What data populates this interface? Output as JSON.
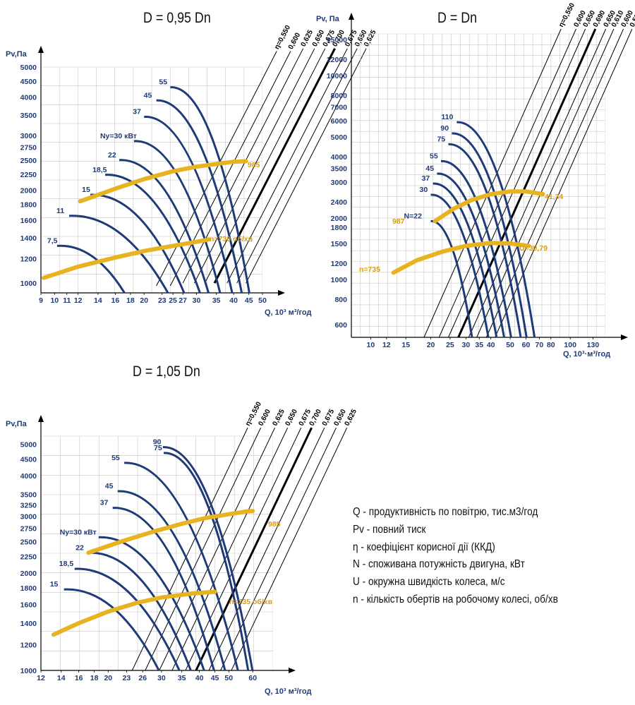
{
  "chart_data": [
    {
      "type": "line",
      "title": "D = 0,95 Dn",
      "ylabel": "Pv,Па",
      "xlabel": "Q, 10³ м³/год",
      "log_scale": "both",
      "grid": true,
      "xticks": [
        "9",
        "10",
        "11",
        "12",
        "14",
        "16",
        "18",
        "20",
        "23",
        "25",
        "27",
        "30",
        "35",
        "40",
        "45",
        "50"
      ],
      "yticks": [
        "1000",
        "1200",
        "1400",
        "1600",
        "1800",
        "2000",
        "2250",
        "2500",
        "2750",
        "3000",
        "3500",
        "4000",
        "4500",
        "5000"
      ],
      "efficiency_labels": [
        "η=0,550",
        "0,600",
        "0,625",
        "0,650",
        "0,675",
        "0,700",
        "0,675",
        "0,650",
        "0,625"
      ],
      "power_labels": [
        "7,5",
        "11",
        "15",
        "18,5",
        "22",
        "Ny=30 кВт",
        "37",
        "45",
        "55"
      ],
      "speed_curves": [
        {
          "name": "985",
          "points": [
            [
              12.2,
              1840
            ],
            [
              16,
              2020
            ],
            [
              20,
              2170
            ],
            [
              25,
              2300
            ],
            [
              30,
              2380
            ],
            [
              35,
              2430
            ],
            [
              40,
              2470
            ],
            [
              44,
              2480
            ]
          ]
        },
        {
          "name": "n=730 об/хв",
          "points": [
            [
              9.2,
              1040
            ],
            [
              12,
              1130
            ],
            [
              16,
              1210
            ],
            [
              20,
              1270
            ],
            [
              25,
              1320
            ],
            [
              30,
              1360
            ],
            [
              33,
              1385
            ]
          ]
        }
      ]
    },
    {
      "type": "line",
      "title": "D = Dn",
      "ylabel": "Pv, Па",
      "xlabel": "Q, 10³·м³/год",
      "log_scale": "both",
      "grid": true,
      "xticks": [
        "10",
        "12",
        "15",
        "20",
        "25",
        "30",
        "35",
        "40",
        "50",
        "60",
        "70",
        "80",
        "100",
        "130"
      ],
      "yticks": [
        "600",
        "800",
        "1000",
        "1200",
        "1500",
        "1800",
        "2000",
        "2400",
        "3000",
        "3500",
        "4000",
        "5000",
        "6000",
        "7000",
        "8000",
        "10000",
        "12000",
        "15000"
      ],
      "efficiency_labels": [
        "η=0,550",
        "0,600",
        "0,650",
        "0,690",
        "0,650",
        "0,610",
        "0,600",
        "0,550"
      ],
      "power_labels": [
        "N=22",
        "30",
        "37",
        "45",
        "55",
        "75",
        "90",
        "110"
      ],
      "speed_curves": [
        {
          "name": "41,34",
          "annotation": "987",
          "points": [
            [
              21,
              1930
            ],
            [
              26,
              2220
            ],
            [
              32,
              2450
            ],
            [
              40,
              2620
            ],
            [
              50,
              2700
            ],
            [
              60,
              2700
            ],
            [
              73,
              2620
            ]
          ]
        },
        {
          "name": "U=30,79",
          "annotation": "n=735",
          "points": [
            [
              13,
              1080
            ],
            [
              17,
              1240
            ],
            [
              23,
              1370
            ],
            [
              30,
              1460
            ],
            [
              40,
              1510
            ],
            [
              50,
              1500
            ],
            [
              62,
              1460
            ]
          ]
        }
      ]
    },
    {
      "type": "line",
      "title": "D = 1,05 Dn",
      "ylabel": "Pv,Па",
      "xlabel": "Q, 10³ м³/год",
      "log_scale": "both",
      "grid": true,
      "xticks": [
        "12",
        "14",
        "16",
        "18",
        "20",
        "23",
        "26",
        "30",
        "35",
        "40",
        "45",
        "50",
        "60"
      ],
      "yticks": [
        "1000",
        "1200",
        "1400",
        "1600",
        "1800",
        "2000",
        "2250",
        "2500",
        "2750",
        "3000",
        "3250",
        "3500",
        "4000",
        "4500",
        "5000"
      ],
      "efficiency_labels": [
        "η=0,550",
        "0,600",
        "0,625",
        "0,650",
        "0,675",
        "0,700",
        "0,675",
        "0,650",
        "0,625"
      ],
      "power_labels": [
        "15",
        "18,5",
        "22",
        "Ny=30 кВт",
        "37",
        "45",
        "55",
        "75",
        "90"
      ],
      "speed_curves": [
        {
          "name": "985",
          "points": [
            [
              17.2,
              2310
            ],
            [
              22,
              2500
            ],
            [
              28,
              2680
            ],
            [
              35,
              2840
            ],
            [
              42,
              2960
            ],
            [
              50,
              3040
            ],
            [
              57,
              3100
            ],
            [
              60,
              3110
            ]
          ]
        },
        {
          "name": "n=735 об/хв",
          "points": [
            [
              13.2,
              1290
            ],
            [
              16,
              1400
            ],
            [
              20,
              1520
            ],
            [
              25,
              1620
            ],
            [
              30,
              1680
            ],
            [
              38,
              1730
            ],
            [
              45,
              1750
            ]
          ]
        }
      ]
    }
  ],
  "legend": [
    "Q - продуктивність по повітрю, тис.м3/год",
    "Pv - повний тиск",
    "η - коефіцієнт корисної дії (ККД)",
    "N - споживана потужність двигуна, кВт",
    "U - окружна швидкість колеса, м/с",
    "n - кількість обертів на робочому колесі, об/хв"
  ],
  "colors": {
    "power_curve": "#1f3a78",
    "speed_curve": "#e8b321",
    "efficiency_line": "#000000",
    "grid": "#c8c8c8",
    "speed_label": "#d89b12"
  }
}
